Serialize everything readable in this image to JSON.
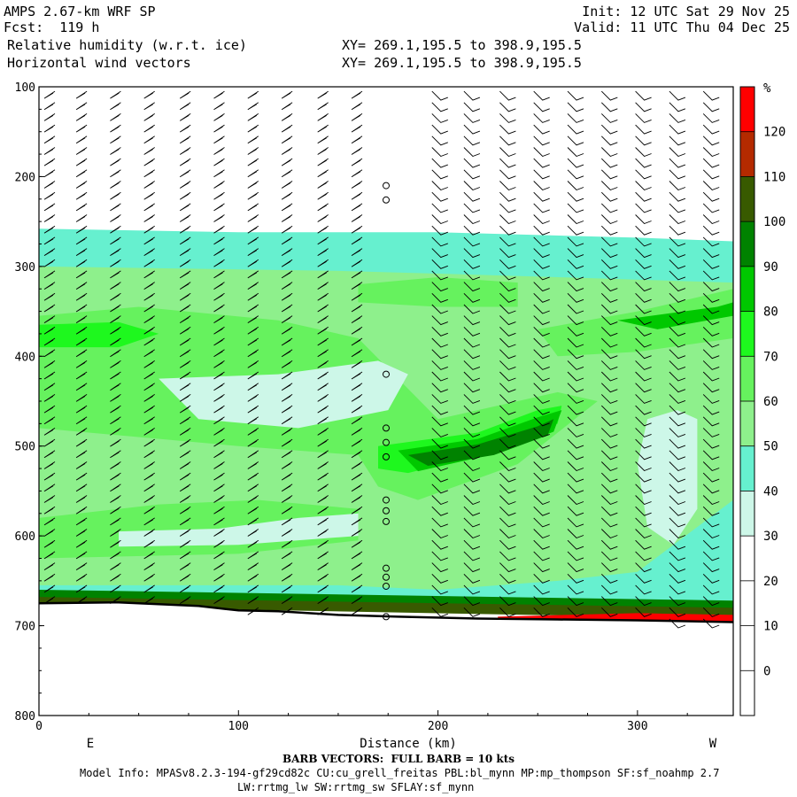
{
  "header": {
    "model": "AMPS 2.67-km WRF SP",
    "forecast": "Fcst:  119 h",
    "field1": "Relative humidity (w.r.t. ice)",
    "field2": "Horizontal wind vectors",
    "xy1": "XY= 269.1,195.5 to 398.9,195.5",
    "xy2": "XY= 269.1,195.5 to 398.9,195.5",
    "init": "Init: 12 UTC Sat 29 Nov 25",
    "valid": "Valid: 11 UTC Thu 04 Dec 25"
  },
  "chart_data": {
    "type": "heatmap",
    "title": "Relative humidity (w.r.t. ice)",
    "subtitle": "Horizontal wind vectors",
    "xlabel": "Distance (km)",
    "ylabel": "",
    "x_ticks": [
      0,
      100,
      200,
      300
    ],
    "y_ticks": [
      100,
      200,
      300,
      400,
      500,
      600,
      700,
      800
    ],
    "xlim": [
      0,
      348
    ],
    "ylim": [
      800,
      100
    ],
    "y_reversed": true,
    "left_end_label": "E",
    "right_end_label": "W",
    "colorbar": {
      "unit": "%",
      "levels": [
        0,
        10,
        20,
        30,
        40,
        50,
        60,
        70,
        80,
        90,
        100,
        110,
        120
      ],
      "colors": [
        "#ffffff",
        "#ffffff",
        "#ffffff",
        "#ffffff",
        "#cdf7e8",
        "#66f0cf",
        "#8ef08c",
        "#66f25e",
        "#1ef81e",
        "#00c800",
        "#008200",
        "#385a00",
        "#b42a00",
        "#ff0000"
      ]
    },
    "terrain_pressure": [
      {
        "x": 0,
        "p": 675
      },
      {
        "x": 40,
        "p": 674
      },
      {
        "x": 80,
        "p": 678
      },
      {
        "x": 100,
        "p": 683
      },
      {
        "x": 120,
        "p": 684
      },
      {
        "x": 150,
        "p": 688
      },
      {
        "x": 180,
        "p": 690
      },
      {
        "x": 220,
        "p": 692
      },
      {
        "x": 260,
        "p": 693
      },
      {
        "x": 300,
        "p": 694
      },
      {
        "x": 348,
        "p": 696
      }
    ],
    "rh_regions": [
      {
        "level": 40,
        "points": [
          [
            0,
            258
          ],
          [
            100,
            262
          ],
          [
            200,
            262
          ],
          [
            300,
            268
          ],
          [
            348,
            272
          ],
          [
            348,
            680
          ],
          [
            0,
            665
          ]
        ]
      },
      {
        "level": 50,
        "points": [
          [
            0,
            300
          ],
          [
            150,
            305
          ],
          [
            200,
            308
          ],
          [
            260,
            312
          ],
          [
            348,
            318
          ],
          [
            348,
            560
          ],
          [
            300,
            640
          ],
          [
            260,
            650
          ],
          [
            200,
            660
          ],
          [
            150,
            655
          ],
          [
            0,
            655
          ]
        ]
      },
      {
        "level": 60,
        "points": [
          [
            0,
            355
          ],
          [
            50,
            345
          ],
          [
            120,
            360
          ],
          [
            160,
            380
          ],
          [
            200,
            470
          ],
          [
            260,
            440
          ],
          [
            280,
            450
          ],
          [
            240,
            520
          ],
          [
            190,
            560
          ],
          [
            170,
            545
          ],
          [
            160,
            510
          ],
          [
            100,
            500
          ],
          [
            0,
            480
          ]
        ]
      },
      {
        "level": 60,
        "points": [
          [
            160,
            320
          ],
          [
            200,
            312
          ],
          [
            240,
            318
          ],
          [
            240,
            345
          ],
          [
            200,
            345
          ],
          [
            160,
            340
          ]
        ]
      },
      {
        "level": 60,
        "points": [
          [
            250,
            370
          ],
          [
            300,
            350
          ],
          [
            348,
            325
          ],
          [
            348,
            380
          ],
          [
            300,
            395
          ],
          [
            260,
            400
          ]
        ]
      },
      {
        "level": 60,
        "points": [
          [
            0,
            580
          ],
          [
            60,
            565
          ],
          [
            110,
            560
          ],
          [
            160,
            570
          ],
          [
            160,
            605
          ],
          [
            100,
            620
          ],
          [
            0,
            625
          ]
        ]
      },
      {
        "level": 70,
        "points": [
          [
            0,
            365
          ],
          [
            40,
            362
          ],
          [
            60,
            375
          ],
          [
            40,
            390
          ],
          [
            0,
            390
          ]
        ]
      },
      {
        "level": 70,
        "points": [
          [
            170,
            500
          ],
          [
            220,
            485
          ],
          [
            250,
            460
          ],
          [
            262,
            455
          ],
          [
            260,
            475
          ],
          [
            230,
            505
          ],
          [
            185,
            530
          ],
          [
            170,
            525
          ]
        ]
      },
      {
        "level": 80,
        "points": [
          [
            180,
            505
          ],
          [
            220,
            492
          ],
          [
            250,
            468
          ],
          [
            262,
            460
          ],
          [
            258,
            484
          ],
          [
            230,
            508
          ],
          [
            190,
            528
          ]
        ]
      },
      {
        "level": 80,
        "points": [
          [
            290,
            360
          ],
          [
            340,
            345
          ],
          [
            348,
            340
          ],
          [
            348,
            355
          ],
          [
            310,
            370
          ]
        ]
      },
      {
        "level": 90,
        "points": [
          [
            185,
            510
          ],
          [
            220,
            498
          ],
          [
            250,
            478
          ],
          [
            258,
            470
          ],
          [
            255,
            488
          ],
          [
            228,
            510
          ],
          [
            195,
            522
          ]
        ]
      },
      {
        "level": 30,
        "points": [
          [
            60,
            425
          ],
          [
            120,
            420
          ],
          [
            170,
            405
          ],
          [
            185,
            420
          ],
          [
            175,
            460
          ],
          [
            130,
            480
          ],
          [
            80,
            470
          ]
        ]
      },
      {
        "level": 30,
        "points": [
          [
            305,
            470
          ],
          [
            320,
            460
          ],
          [
            330,
            470
          ],
          [
            330,
            570
          ],
          [
            318,
            610
          ],
          [
            305,
            590
          ],
          [
            300,
            520
          ]
        ]
      },
      {
        "level": 30,
        "points": [
          [
            40,
            595
          ],
          [
            90,
            592
          ],
          [
            130,
            580
          ],
          [
            160,
            575
          ],
          [
            160,
            600
          ],
          [
            100,
            610
          ],
          [
            40,
            612
          ]
        ]
      },
      {
        "level": 90,
        "points": [
          [
            0,
            660
          ],
          [
            348,
            672
          ],
          [
            348,
            690
          ],
          [
            0,
            676
          ]
        ]
      },
      {
        "level": 100,
        "points": [
          [
            0,
            668
          ],
          [
            348,
            680
          ],
          [
            348,
            692
          ],
          [
            0,
            678
          ]
        ]
      },
      {
        "level": 120,
        "points": [
          [
            230,
            690
          ],
          [
            300,
            686
          ],
          [
            348,
            688
          ],
          [
            348,
            700
          ],
          [
            230,
            700
          ]
        ]
      }
    ],
    "wind_columns_x": [
      8,
      24,
      41,
      58,
      76,
      93,
      110,
      127,
      145,
      162,
      174,
      197,
      213,
      231,
      248,
      265,
      282,
      299,
      316,
      333
    ],
    "calm_markers": [
      {
        "x": 174,
        "p": 210
      },
      {
        "x": 174,
        "p": 226
      },
      {
        "x": 174,
        "p": 420
      },
      {
        "x": 174,
        "p": 480
      },
      {
        "x": 174,
        "p": 496
      },
      {
        "x": 174,
        "p": 512
      },
      {
        "x": 174,
        "p": 560
      },
      {
        "x": 174,
        "p": 572
      },
      {
        "x": 174,
        "p": 584
      },
      {
        "x": 174,
        "p": 636
      },
      {
        "x": 174,
        "p": 646
      },
      {
        "x": 174,
        "p": 656
      },
      {
        "x": 174,
        "p": 690
      }
    ]
  },
  "footer": {
    "barb": "BARB VECTORS:  FULL BARB = 10 kts",
    "model_info": "Model Info: MPASv8.2.3-194-gf29cd82c CU:cu_grell_freitas PBL:bl_mynn MP:mp_thompson SF:sf_noahmp 2.7",
    "model_info2": "LW:rrtmg_lw SW:rrtmg_sw SFLAY:sf_mynn"
  }
}
